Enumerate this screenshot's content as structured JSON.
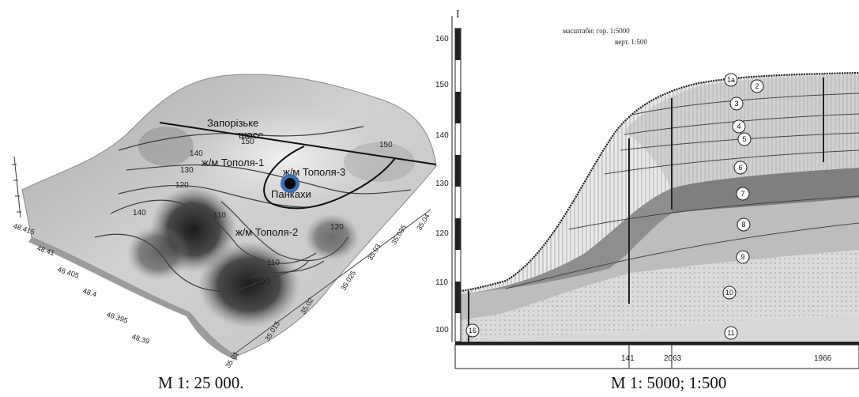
{
  "left_panel": {
    "caption": "М 1: 25 000.",
    "labels": {
      "road": "Запорізьке",
      "road2": "шосе",
      "district_1": "ж/м Тополя-1",
      "district_2": "ж/м Тополя-2",
      "district_3": "ж/м Тополя-3",
      "site": "Панкахи"
    },
    "contours": [
      "150",
      "140",
      "130",
      "120",
      "140",
      "110",
      "120",
      "110",
      "100",
      "150"
    ],
    "lat_ticks": [
      "48.415",
      "48.41",
      "48.405",
      "48.4",
      "48.395",
      "48.39"
    ],
    "lon_ticks": [
      "35.01",
      "35.015",
      "35.02",
      "35.025",
      "35.03",
      "35.035",
      "35.04"
    ],
    "colors": {
      "marker_outer": "#3b6fb0",
      "marker_inner": "#0a0a0a"
    }
  },
  "right_panel": {
    "caption": "М 1: 5000; 1:500",
    "scale_line_1": "масштаби: гор. 1:5000",
    "scale_line_2": "верт. 1:500",
    "axis_mark": "I",
    "y_ticks": [
      "160",
      "150",
      "140",
      "130",
      "120",
      "110",
      "100"
    ],
    "well_labels": [
      "141",
      "2063",
      "1966"
    ],
    "layers": [
      "1а",
      "2",
      "3",
      "4",
      "5",
      "6",
      "7",
      "8",
      "9",
      "10",
      "11",
      "16"
    ]
  }
}
